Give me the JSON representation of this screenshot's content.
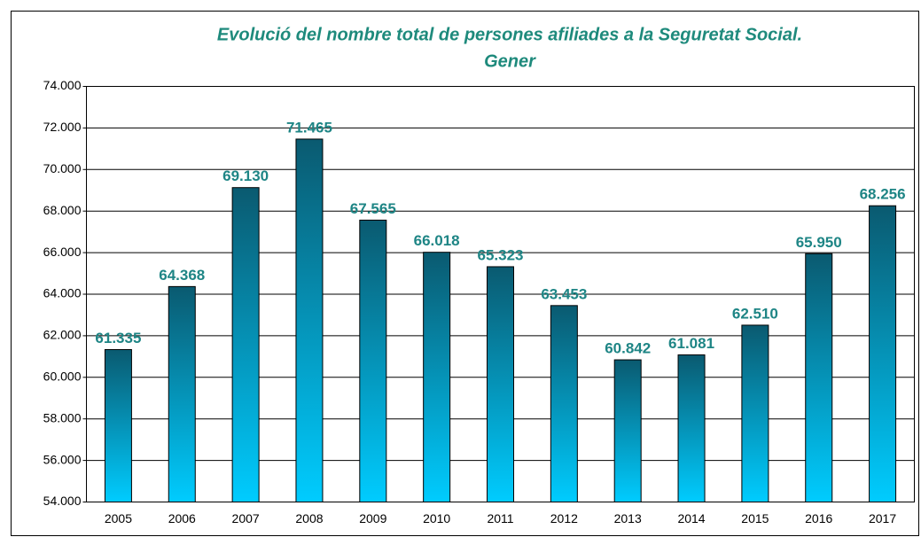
{
  "chart_data": {
    "type": "bar",
    "title": [
      "Evolució del nombre total de persones afiliades a la Seguretat Social.",
      "Gener"
    ],
    "categories": [
      "2005",
      "2006",
      "2007",
      "2008",
      "2009",
      "2010",
      "2011",
      "2012",
      "2013",
      "2014",
      "2015",
      "2016",
      "2017"
    ],
    "values": [
      61335,
      64368,
      69130,
      71465,
      67565,
      66018,
      65323,
      63453,
      60842,
      61081,
      62510,
      65950,
      68256
    ],
    "value_labels": [
      "61.335",
      "64.368",
      "69.130",
      "71.465",
      "67.565",
      "66.018",
      "65.323",
      "63.453",
      "60.842",
      "61.081",
      "62.510",
      "65.950",
      "68.256"
    ],
    "gradient": [
      "#0a5a70",
      "#00ccff"
    ],
    "label_color": "#1e8585",
    "ylim": [
      54000,
      74000
    ],
    "yticks": [
      {
        "value": 54000,
        "label": "54.000"
      },
      {
        "value": 56000,
        "label": "56.000"
      },
      {
        "value": 58000,
        "label": "58.000"
      },
      {
        "value": 60000,
        "label": "60.000"
      },
      {
        "value": 62000,
        "label": "62.000"
      },
      {
        "value": 64000,
        "label": "64.000"
      },
      {
        "value": 66000,
        "label": "66.000"
      },
      {
        "value": 68000,
        "label": "68.000"
      },
      {
        "value": 70000,
        "label": "70.000"
      },
      {
        "value": 72000,
        "label": "72.000"
      },
      {
        "value": 74000,
        "label": "74.000"
      }
    ],
    "grid": true
  }
}
